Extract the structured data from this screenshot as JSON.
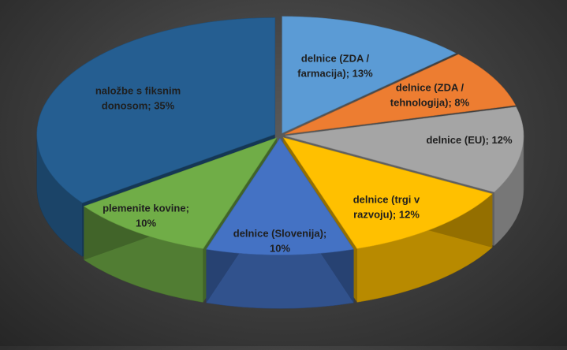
{
  "chart_data": {
    "type": "pie",
    "style": "3d-exploded",
    "title": "",
    "slices": [
      {
        "label_lines": [
          "delnice (ZDA /",
          "farmacija); 13%"
        ],
        "value": 13,
        "color": "#5b9bd5"
      },
      {
        "label_lines": [
          "delnice (ZDA /",
          "tehnologija); 8%"
        ],
        "value": 8,
        "color": "#ed7d31"
      },
      {
        "label_lines": [
          "delnice (EU); 12%"
        ],
        "value": 12,
        "color": "#a5a5a5"
      },
      {
        "label_lines": [
          "delnice (trgi v",
          "razvoju); 12%"
        ],
        "value": 12,
        "color": "#ffc000"
      },
      {
        "label_lines": [
          "delnice (Slovenija);",
          "10%"
        ],
        "value": 10,
        "color": "#4472c4"
      },
      {
        "label_lines": [
          "plemenite kovine;",
          "10%"
        ],
        "value": 10,
        "color": "#70ad47"
      },
      {
        "label_lines": [
          "naložbe s fiksnim",
          "donosom; 35%"
        ],
        "value": 35,
        "color": "#255e91"
      }
    ]
  }
}
